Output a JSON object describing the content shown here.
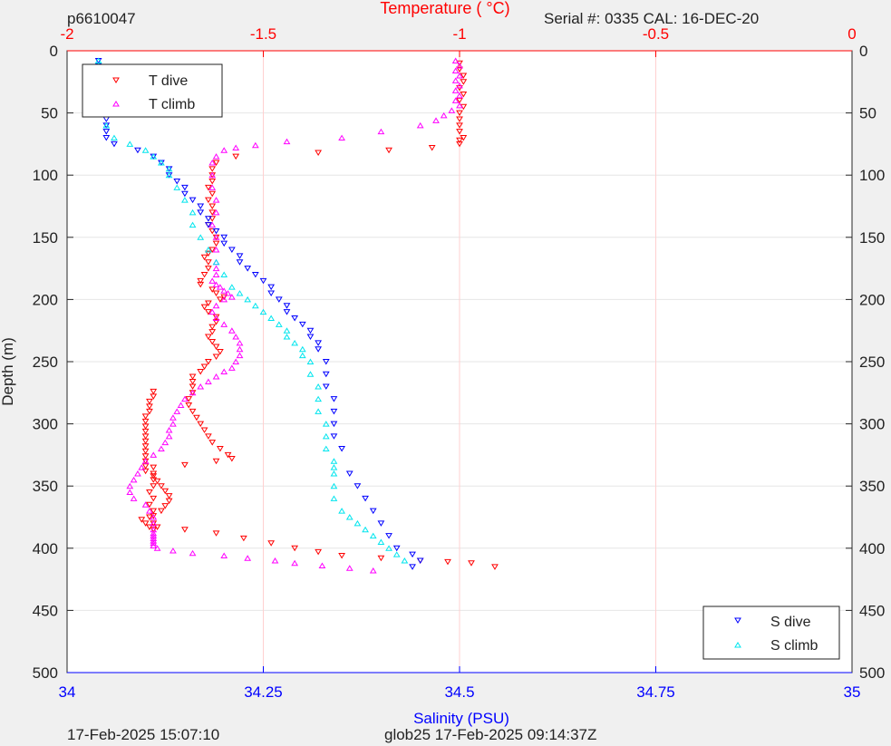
{
  "header": {
    "left": "p6610047",
    "right": "Serial #: 0335  CAL: 16-DEC-20"
  },
  "footer": {
    "left": "17-Feb-2025 15:07:10",
    "center": "glob25 17-Feb-2025 09:14:37Z"
  },
  "colors": {
    "t_dive": "#ff0000",
    "t_climb": "#ff00ff",
    "s_dive": "#0000ff",
    "s_climb": "#00e5ee",
    "temp_axis": "#ff0000",
    "sal_axis": "#0000ff"
  },
  "chart_data": {
    "type": "scatter",
    "title": "",
    "top_axis": {
      "label": "Temperature (    °C)",
      "range": [
        -2,
        0
      ],
      "ticks": [
        -2,
        -1.5,
        -1,
        -0.5,
        0
      ],
      "tick_labels": [
        "-2",
        "-1.5",
        "-1",
        "-0.5",
        "0"
      ]
    },
    "bottom_axis": {
      "label": "Salinity (PSU)",
      "range": [
        34,
        35
      ],
      "ticks": [
        34,
        34.25,
        34.5,
        34.75,
        35
      ],
      "tick_labels": [
        "34",
        "34.25",
        "34.5",
        "34.75",
        "35"
      ]
    },
    "y_axis": {
      "label": "Depth (m)",
      "range": [
        0,
        500
      ],
      "reversed": true,
      "ticks": [
        0,
        50,
        100,
        150,
        200,
        250,
        300,
        350,
        400,
        450,
        500
      ],
      "tick_labels": [
        "0",
        "50",
        "100",
        "150",
        "200",
        "250",
        "300",
        "350",
        "400",
        "450",
        "500"
      ]
    },
    "grid": true,
    "legend_top_left": [
      "T dive",
      "T climb"
    ],
    "legend_bottom_right": [
      "S dive",
      "S climb"
    ],
    "series": [
      {
        "name": "T dive",
        "axis": "temperature",
        "marker": "triangle-down",
        "x": [
          -1.0,
          -1.0,
          -0.99,
          -0.99,
          -1.0,
          -0.99,
          -1.0,
          -0.99,
          -1.0,
          -1.0,
          -1.0,
          -1.0,
          -0.99,
          -1.0,
          -1.0,
          -1.07,
          -1.18,
          -1.36,
          -1.57,
          -1.62,
          -1.63,
          -1.63,
          -1.63,
          -1.64,
          -1.63,
          -1.64,
          -1.63,
          -1.63,
          -1.63,
          -1.64,
          -1.63,
          -1.62,
          -1.62,
          -1.63,
          -1.64,
          -1.65,
          -1.64,
          -1.64,
          -1.65,
          -1.66,
          -1.66,
          -1.63,
          -1.62,
          -1.6,
          -1.61,
          -1.64,
          -1.65,
          -1.64,
          -1.62,
          -1.62,
          -1.63,
          -1.63,
          -1.64,
          -1.63,
          -1.62,
          -1.61,
          -1.62,
          -1.64,
          -1.65,
          -1.66,
          -1.68,
          -1.68,
          -1.68,
          -1.68,
          -1.69,
          -1.69,
          -1.68,
          -1.67,
          -1.66,
          -1.65,
          -1.64,
          -1.63,
          -1.61,
          -1.59,
          -1.58,
          -1.62,
          -1.7,
          -1.78,
          -1.78,
          -1.78,
          -1.78,
          -1.79,
          -1.78,
          -1.79,
          -1.78,
          -1.79,
          -1.78,
          -1.77,
          -1.78,
          -1.79,
          -1.8,
          -1.81,
          -1.78,
          -1.76,
          -1.75,
          -1.74,
          -1.74,
          -1.75,
          -1.76,
          -1.77,
          -1.78,
          -1.8,
          -1.8,
          -1.8,
          -1.8,
          -1.8,
          -1.8,
          -1.8,
          -1.8,
          -1.8,
          -1.8,
          -1.8,
          -1.8,
          -1.79,
          -1.79,
          -1.79,
          -1.78,
          -1.78,
          -1.7,
          -1.62,
          -1.55,
          -1.48,
          -1.42,
          -1.36,
          -1.3,
          -1.2,
          -1.1,
          -1.03,
          -0.97,
          -0.91
        ],
        "y": [
          10,
          15,
          20,
          25,
          30,
          35,
          40,
          45,
          50,
          55,
          60,
          65,
          70,
          72,
          75,
          78,
          80,
          82,
          85,
          90,
          95,
          100,
          105,
          110,
          115,
          120,
          125,
          130,
          135,
          140,
          145,
          150,
          155,
          160,
          163,
          166,
          170,
          175,
          180,
          185,
          188,
          192,
          195,
          198,
          200,
          203,
          206,
          210,
          214,
          218,
          222,
          226,
          230,
          234,
          238,
          242,
          246,
          250,
          254,
          258,
          262,
          266,
          270,
          275,
          280,
          285,
          290,
          295,
          300,
          305,
          310,
          315,
          320,
          325,
          328,
          330,
          333,
          335,
          340,
          345,
          350,
          355,
          360,
          365,
          370,
          375,
          380,
          383,
          385,
          383,
          380,
          377,
          374,
          370,
          366,
          362,
          358,
          354,
          350,
          346,
          342,
          338,
          334,
          330,
          326,
          322,
          318,
          314,
          310,
          306,
          302,
          298,
          294,
          290,
          286,
          282,
          278,
          274,
          385,
          388,
          392,
          396,
          400,
          403,
          406,
          408,
          410,
          411,
          412,
          415
        ]
      },
      {
        "name": "T climb",
        "axis": "temperature",
        "marker": "triangle-up",
        "x": [
          -1.01,
          -1.0,
          -1.01,
          -1.0,
          -1.01,
          -1.0,
          -1.01,
          -1.0,
          -1.01,
          -1.0,
          -1.02,
          -1.04,
          -1.06,
          -1.1,
          -1.2,
          -1.3,
          -1.44,
          -1.52,
          -1.57,
          -1.6,
          -1.62,
          -1.63,
          -1.63,
          -1.63,
          -1.62,
          -1.62,
          -1.63,
          -1.62,
          -1.62,
          -1.62,
          -1.62,
          -1.62,
          -1.63,
          -1.62,
          -1.61,
          -1.6,
          -1.59,
          -1.58,
          -1.6,
          -1.62,
          -1.63,
          -1.62,
          -1.6,
          -1.58,
          -1.57,
          -1.56,
          -1.56,
          -1.56,
          -1.57,
          -1.58,
          -1.6,
          -1.62,
          -1.64,
          -1.66,
          -1.68,
          -1.7,
          -1.71,
          -1.72,
          -1.73,
          -1.73,
          -1.74,
          -1.74,
          -1.75,
          -1.76,
          -1.78,
          -1.8,
          -1.81,
          -1.82,
          -1.83,
          -1.84,
          -1.84,
          -1.83,
          -1.8,
          -1.79,
          -1.78,
          -1.78,
          -1.78,
          -1.78,
          -1.78,
          -1.78,
          -1.78,
          -1.78,
          -1.78,
          -1.77,
          -1.73,
          -1.68,
          -1.6,
          -1.54,
          -1.47,
          -1.42,
          -1.35,
          -1.28,
          -1.22
        ],
        "y": [
          8,
          12,
          16,
          20,
          24,
          28,
          32,
          36,
          40,
          44,
          48,
          52,
          56,
          60,
          65,
          70,
          73,
          76,
          78,
          80,
          85,
          90,
          100,
          110,
          120,
          130,
          140,
          150,
          160,
          170,
          175,
          180,
          185,
          188,
          190,
          193,
          195,
          198,
          200,
          205,
          210,
          215,
          220,
          225,
          230,
          235,
          240,
          245,
          250,
          255,
          258,
          262,
          266,
          270,
          275,
          280,
          285,
          290,
          295,
          300,
          305,
          310,
          315,
          320,
          325,
          330,
          335,
          340,
          345,
          350,
          355,
          360,
          365,
          370,
          375,
          380,
          385,
          388,
          390,
          392,
          394,
          396,
          398,
          400,
          402,
          404,
          406,
          408,
          410,
          412,
          414,
          416,
          418
        ]
      },
      {
        "name": "S dive",
        "axis": "salinity",
        "marker": "triangle-down",
        "x": [
          34.04,
          34.04,
          34.04,
          34.04,
          34.04,
          34.04,
          34.04,
          34.04,
          34.04,
          34.04,
          34.05,
          34.05,
          34.05,
          34.05,
          34.06,
          34.09,
          34.11,
          34.12,
          34.13,
          34.13,
          34.14,
          34.15,
          34.15,
          34.16,
          34.17,
          34.17,
          34.18,
          34.18,
          34.19,
          34.2,
          34.2,
          34.21,
          34.22,
          34.22,
          34.23,
          34.24,
          34.25,
          34.26,
          34.26,
          34.27,
          34.28,
          34.28,
          34.29,
          34.3,
          34.31,
          34.31,
          34.32,
          34.32,
          34.33,
          34.33,
          34.33,
          34.34,
          34.34,
          34.34,
          34.34,
          34.35,
          34.36,
          34.37,
          34.38,
          34.39,
          34.4,
          34.41,
          34.42,
          34.44,
          34.45,
          34.44
        ],
        "y": [
          8,
          12,
          16,
          20,
          25,
          30,
          35,
          40,
          45,
          50,
          55,
          60,
          65,
          70,
          75,
          80,
          85,
          90,
          95,
          100,
          105,
          110,
          115,
          120,
          125,
          130,
          135,
          140,
          145,
          150,
          155,
          160,
          165,
          170,
          175,
          180,
          185,
          190,
          195,
          200,
          205,
          210,
          215,
          220,
          225,
          230,
          235,
          240,
          250,
          260,
          270,
          280,
          290,
          300,
          310,
          320,
          340,
          350,
          360,
          370,
          380,
          390,
          400,
          405,
          410,
          415
        ]
      },
      {
        "name": "S climb",
        "axis": "salinity",
        "marker": "triangle-up",
        "x": [
          34.04,
          34.04,
          34.04,
          34.04,
          34.04,
          34.04,
          34.04,
          34.04,
          34.04,
          34.04,
          34.05,
          34.06,
          34.08,
          34.1,
          34.11,
          34.12,
          34.13,
          34.13,
          34.14,
          34.15,
          34.16,
          34.16,
          34.17,
          34.18,
          34.19,
          34.2,
          34.21,
          34.22,
          34.23,
          34.24,
          34.25,
          34.26,
          34.27,
          34.28,
          34.28,
          34.29,
          34.3,
          34.3,
          34.31,
          34.31,
          34.32,
          34.32,
          34.32,
          34.33,
          34.33,
          34.33,
          34.34,
          34.34,
          34.34,
          34.34,
          34.34,
          34.35,
          34.36,
          34.37,
          34.38,
          34.39,
          34.4,
          34.41,
          34.42,
          34.43
        ],
        "y": [
          8,
          12,
          16,
          20,
          25,
          30,
          35,
          40,
          45,
          50,
          60,
          70,
          75,
          80,
          85,
          90,
          95,
          100,
          110,
          120,
          130,
          140,
          150,
          160,
          170,
          180,
          190,
          195,
          200,
          205,
          210,
          215,
          220,
          225,
          230,
          235,
          240,
          245,
          250,
          260,
          270,
          280,
          290,
          300,
          310,
          320,
          330,
          335,
          340,
          350,
          360,
          370,
          375,
          380,
          385,
          390,
          395,
          400,
          405,
          410
        ]
      }
    ]
  }
}
